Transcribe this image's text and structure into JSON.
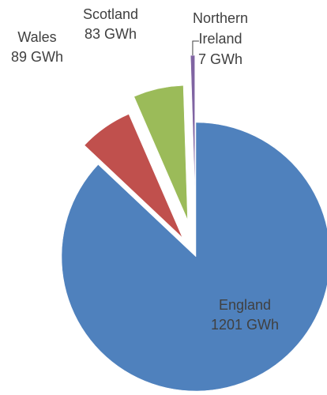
{
  "chart_data": {
    "type": "pie",
    "title": "",
    "unit": "GWh",
    "slices": [
      {
        "name": "England",
        "value": 1201,
        "label_lines": [
          "England",
          "1201 GWh"
        ],
        "color": "#4f81bd",
        "exploded": false
      },
      {
        "name": "Wales",
        "value": 89,
        "label_lines": [
          "Wales",
          "89 GWh"
        ],
        "color": "#c0504d",
        "exploded": true
      },
      {
        "name": "Scotland",
        "value": 83,
        "label_lines": [
          "Scotland",
          "83 GWh"
        ],
        "color": "#9bbb59",
        "exploded": true
      },
      {
        "name": "Northern Ireland",
        "value": 7,
        "label_lines": [
          "Northern",
          "Ireland",
          "7 GWh"
        ],
        "color": "#8064a2",
        "exploded": true
      }
    ],
    "legend": "none",
    "data_labels": "outside"
  }
}
